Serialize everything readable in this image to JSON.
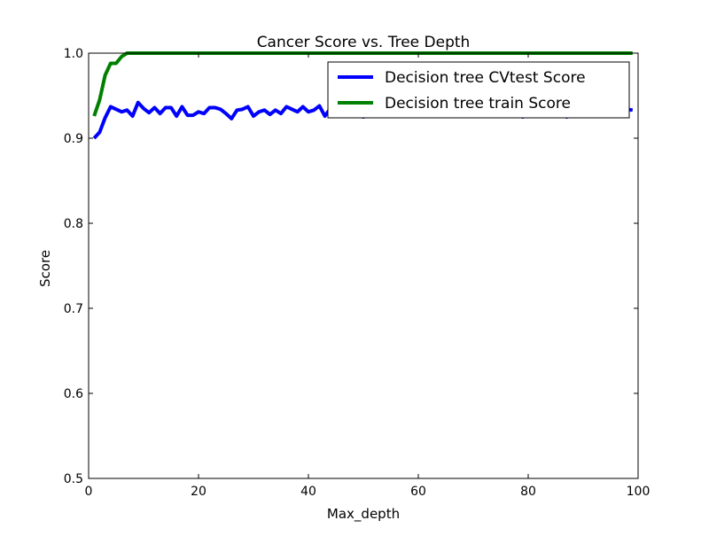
{
  "chart_data": {
    "type": "line",
    "title": "Cancer Score vs. Tree Depth",
    "xlabel": "Max_depth",
    "ylabel": "Score",
    "xlim": [
      0,
      100
    ],
    "ylim": [
      0.5,
      1.0
    ],
    "xticks": [
      0,
      20,
      40,
      60,
      80,
      100
    ],
    "xtick_labels": [
      "0",
      "20",
      "40",
      "60",
      "80",
      "100"
    ],
    "yticks": [
      0.5,
      0.6,
      0.7,
      0.8,
      0.9,
      1.0
    ],
    "ytick_labels": [
      "0.5",
      "0.6",
      "0.7",
      "0.8",
      "0.9",
      "1.0"
    ],
    "grid": false,
    "legend_position": "top-right",
    "x": [
      1,
      2,
      3,
      4,
      5,
      6,
      7,
      8,
      9,
      10,
      11,
      12,
      13,
      14,
      15,
      16,
      17,
      18,
      19,
      20,
      21,
      22,
      23,
      24,
      25,
      26,
      27,
      28,
      29,
      30,
      31,
      32,
      33,
      34,
      35,
      36,
      37,
      38,
      39,
      40,
      41,
      42,
      43,
      44,
      45,
      46,
      47,
      48,
      49,
      50,
      51,
      52,
      53,
      54,
      55,
      56,
      57,
      58,
      59,
      60,
      61,
      62,
      63,
      64,
      65,
      66,
      67,
      68,
      69,
      70,
      71,
      72,
      73,
      74,
      75,
      76,
      77,
      78,
      79,
      80,
      81,
      82,
      83,
      84,
      85,
      86,
      87,
      88,
      89,
      90,
      91,
      92,
      93,
      94,
      95,
      96,
      97,
      98,
      99
    ],
    "series": [
      {
        "name": "Decision tree CVtest Score",
        "color": "#0000ff",
        "values": [
          0.9,
          0.907,
          0.924,
          0.937,
          0.934,
          0.931,
          0.933,
          0.926,
          0.942,
          0.935,
          0.93,
          0.936,
          0.929,
          0.936,
          0.936,
          0.926,
          0.937,
          0.927,
          0.927,
          0.931,
          0.929,
          0.936,
          0.936,
          0.934,
          0.929,
          0.923,
          0.933,
          0.934,
          0.937,
          0.926,
          0.931,
          0.933,
          0.928,
          0.933,
          0.929,
          0.937,
          0.934,
          0.931,
          0.937,
          0.931,
          0.933,
          0.938,
          0.926,
          0.935,
          0.931,
          0.933,
          0.934,
          0.931,
          0.928,
          0.925,
          0.928,
          0.932,
          0.928,
          0.935,
          0.934,
          0.931,
          0.93,
          0.933,
          0.932,
          0.933,
          0.936,
          0.931,
          0.933,
          0.934,
          0.933,
          0.932,
          0.934,
          0.933,
          0.935,
          0.928,
          0.934,
          0.932,
          0.93,
          0.927,
          0.933,
          0.934,
          0.931,
          0.928,
          0.925,
          0.929,
          0.933,
          0.927,
          0.934,
          0.928,
          0.932,
          0.934,
          0.925,
          0.931,
          0.933,
          0.935,
          0.928,
          0.927,
          0.932,
          0.934,
          0.926,
          0.933,
          0.929,
          0.934,
          0.933
        ]
      },
      {
        "name": "Decision tree train Score",
        "color": "#008000",
        "values": [
          0.926,
          0.945,
          0.974,
          0.988,
          0.988,
          0.996,
          1.0,
          1.0,
          1.0,
          1.0,
          1.0,
          1.0,
          1.0,
          1.0,
          1.0,
          1.0,
          1.0,
          1.0,
          1.0,
          1.0,
          1.0,
          1.0,
          1.0,
          1.0,
          1.0,
          1.0,
          1.0,
          1.0,
          1.0,
          1.0,
          1.0,
          1.0,
          1.0,
          1.0,
          1.0,
          1.0,
          1.0,
          1.0,
          1.0,
          1.0,
          1.0,
          1.0,
          1.0,
          1.0,
          1.0,
          1.0,
          1.0,
          1.0,
          1.0,
          1.0,
          1.0,
          1.0,
          1.0,
          1.0,
          1.0,
          1.0,
          1.0,
          1.0,
          1.0,
          1.0,
          1.0,
          1.0,
          1.0,
          1.0,
          1.0,
          1.0,
          1.0,
          1.0,
          1.0,
          1.0,
          1.0,
          1.0,
          1.0,
          1.0,
          1.0,
          1.0,
          1.0,
          1.0,
          1.0,
          1.0,
          1.0,
          1.0,
          1.0,
          1.0,
          1.0,
          1.0,
          1.0,
          1.0,
          1.0,
          1.0,
          1.0,
          1.0,
          1.0,
          1.0,
          1.0,
          1.0,
          1.0,
          1.0,
          1.0
        ]
      }
    ]
  }
}
